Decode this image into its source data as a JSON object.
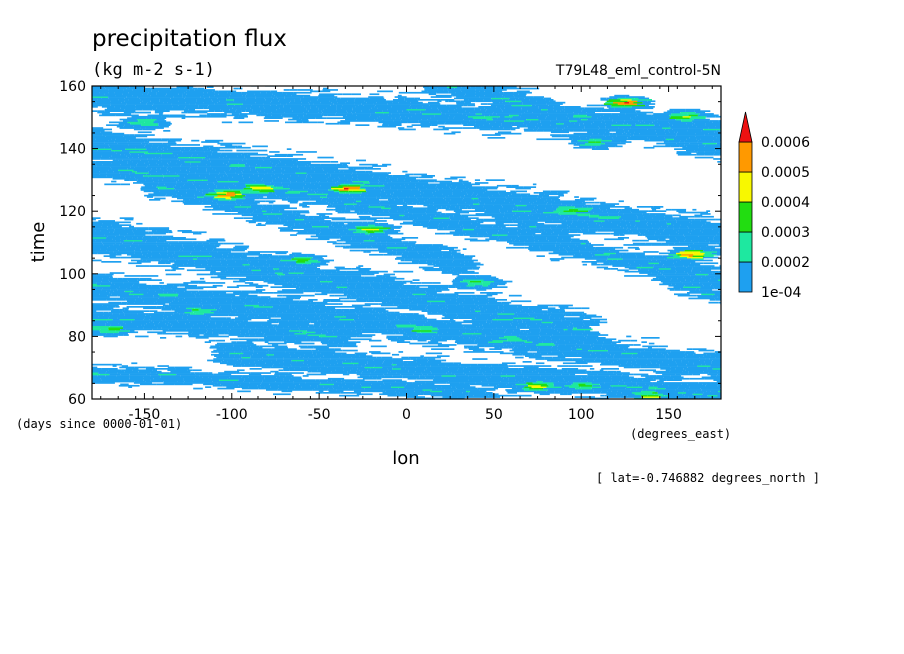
{
  "chart_data": {
    "type": "heatmap",
    "title": "precipitation flux",
    "units": "(kg m-2 s-1)",
    "run_label": "T79L48_eml_control-5N",
    "xlabel": "lon",
    "ylabel": "time",
    "x_units": "(degrees_east)",
    "y_units": "(days since 0000-01-01)",
    "xlim": [
      -180,
      180
    ],
    "ylim": [
      60,
      160
    ],
    "x_ticks": [
      -150,
      -100,
      -50,
      0,
      50,
      100,
      150
    ],
    "y_ticks": [
      60,
      80,
      100,
      120,
      140,
      160
    ],
    "x_tick_labels": [
      "-150",
      "-100",
      "-50",
      "0",
      "50",
      "100",
      "150"
    ],
    "y_tick_labels": [
      "60",
      "80",
      "100",
      "120",
      "140",
      "160"
    ],
    "annotation": "[ lat=-0.746882 degrees_north ]",
    "colorbar": {
      "levels": [
        0.0001,
        0.0002,
        0.0003,
        0.0004,
        0.0005,
        0.0006
      ],
      "labels": [
        "1e-04",
        "0.0002",
        "0.0003",
        "0.0004",
        "0.0005",
        "0.0006"
      ],
      "colors": [
        "#1ea0f0",
        "#1ee8a0",
        "#22dd11",
        "#f8f800",
        "#ff9900",
        "#ee1111"
      ],
      "extend": "max"
    },
    "bands": [
      {
        "x0": -180,
        "t0": 157,
        "x1": 180,
        "t1": 146,
        "w": 5
      },
      {
        "x0": -180,
        "t0": 141,
        "x1": 180,
        "t1": 112,
        "w": 6
      },
      {
        "x0": -180,
        "t0": 134,
        "x1": -60,
        "t1": 126,
        "w": 4
      },
      {
        "x0": -140,
        "t0": 128,
        "x1": 30,
        "t1": 103,
        "w": 4
      },
      {
        "x0": -180,
        "t0": 112,
        "x1": 100,
        "t1": 82,
        "w": 6
      },
      {
        "x0": -180,
        "t0": 96,
        "x1": 180,
        "t1": 70,
        "w": 5
      },
      {
        "x0": -180,
        "t0": 86,
        "x1": -40,
        "t1": 80,
        "w": 4
      },
      {
        "x0": -100,
        "t0": 74,
        "x1": 180,
        "t1": 61,
        "w": 5
      },
      {
        "x0": -180,
        "t0": 68,
        "x1": 40,
        "t1": 62,
        "w": 3
      },
      {
        "x0": 20,
        "t0": 160,
        "x1": 180,
        "t1": 140,
        "w": 4
      },
      {
        "x0": -60,
        "t0": 126,
        "x1": 180,
        "t1": 98,
        "w": 4
      },
      {
        "x0": 60,
        "t0": 118,
        "x1": 180,
        "t1": 92,
        "w": 3
      }
    ],
    "hotspots": [
      {
        "lon": -102,
        "time": 125,
        "value": 0.00062
      },
      {
        "lon": -84,
        "time": 127,
        "value": 0.00045
      },
      {
        "lon": -33,
        "time": 127,
        "value": 0.00062
      },
      {
        "lon": 125,
        "time": 154.5,
        "value": 0.00062
      },
      {
        "lon": 160,
        "time": 150,
        "value": 0.00045
      },
      {
        "lon": 163,
        "time": 106,
        "value": 0.00062
      },
      {
        "lon": -60,
        "time": 104,
        "value": 0.00035
      },
      {
        "lon": -20,
        "time": 114,
        "value": 0.00042
      },
      {
        "lon": 75,
        "time": 64,
        "value": 0.00048
      },
      {
        "lon": 100,
        "time": 64,
        "value": 0.00035
      },
      {
        "lon": 140,
        "time": 61,
        "value": 0.00042
      },
      {
        "lon": -170,
        "time": 82,
        "value": 0.00035
      },
      {
        "lon": 10,
        "time": 82,
        "value": 0.00032
      },
      {
        "lon": 110,
        "time": 142,
        "value": 0.00032
      },
      {
        "lon": -150,
        "time": 148,
        "value": 0.00032
      },
      {
        "lon": 40,
        "time": 97,
        "value": 0.00032
      },
      {
        "lon": -120,
        "time": 88,
        "value": 0.00032
      },
      {
        "lon": 95,
        "time": 120,
        "value": 0.00035
      }
    ]
  }
}
